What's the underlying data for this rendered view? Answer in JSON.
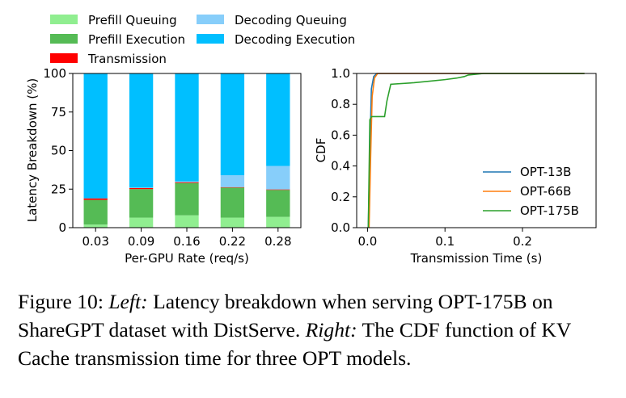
{
  "chart_data": [
    {
      "type": "bar",
      "stacked": true,
      "xlabel": "Per-GPU Rate (req/s)",
      "ylabel": "Latency Breakdown (%)",
      "categories": [
        "0.03",
        "0.09",
        "0.16",
        "0.22",
        "0.28"
      ],
      "ylim": [
        0,
        100
      ],
      "yticks": [
        "0",
        "25",
        "50",
        "75",
        "100"
      ],
      "legend_position": "top, above plots",
      "series": [
        {
          "name": "Prefill Queuing",
          "color": "#90ee90",
          "values": [
            2,
            6.5,
            8,
            6.5,
            7
          ]
        },
        {
          "name": "Prefill Execution",
          "color": "#55bb55",
          "values": [
            16,
            18.5,
            21,
            19.5,
            17.5
          ]
        },
        {
          "name": "Transmission",
          "color": "#ff0000",
          "values": [
            1,
            0.7,
            0.5,
            0.3,
            0.3
          ]
        },
        {
          "name": "Decoding Queuing",
          "color": "#87cefa",
          "values": [
            0,
            0.3,
            0.5,
            7.7,
            15.2
          ]
        },
        {
          "name": "Decoding Execution",
          "color": "#00bfff",
          "values": [
            81,
            74,
            70,
            66,
            60
          ]
        }
      ]
    },
    {
      "type": "line",
      "xlabel": "Transmission Time (s)",
      "ylabel": "CDF",
      "xlim": [
        -0.014,
        0.295
      ],
      "ylim": [
        0,
        1
      ],
      "xticks": [
        "0.0",
        "0.1",
        "0.2"
      ],
      "yticks": [
        "0.0",
        "0.2",
        "0.4",
        "0.6",
        "0.8",
        "1.0"
      ],
      "legend_position": "lower right",
      "series": [
        {
          "name": "OPT-13B",
          "color": "#1f77b4",
          "x": [
            0.001,
            0.003,
            0.005,
            0.008,
            0.012,
            0.28
          ],
          "y": [
            0.0,
            0.5,
            0.9,
            0.98,
            1.0,
            1.0
          ]
        },
        {
          "name": "OPT-66B",
          "color": "#ff7f0e",
          "x": [
            0.002,
            0.004,
            0.006,
            0.009,
            0.013,
            0.28
          ],
          "y": [
            0.0,
            0.45,
            0.85,
            0.97,
            1.0,
            1.0
          ]
        },
        {
          "name": "OPT-175B",
          "color": "#2ca02c",
          "x": [
            0.001,
            0.003,
            0.005,
            0.022,
            0.025,
            0.03,
            0.06,
            0.08,
            0.1,
            0.115,
            0.125,
            0.13,
            0.15,
            0.2,
            0.28
          ],
          "y": [
            0.0,
            0.7,
            0.72,
            0.72,
            0.82,
            0.93,
            0.94,
            0.95,
            0.96,
            0.97,
            0.98,
            0.99,
            1.0,
            1.0,
            1.0
          ]
        }
      ]
    }
  ],
  "caption": {
    "label": "Figure 10: ",
    "left_title": "Left:",
    "left_text": " Latency breakdown when serving OPT-175B on ShareGPT dataset with DistServe. ",
    "right_title": "Right:",
    "right_text": " The CDF function of KV Cache transmission time for three OPT models."
  }
}
